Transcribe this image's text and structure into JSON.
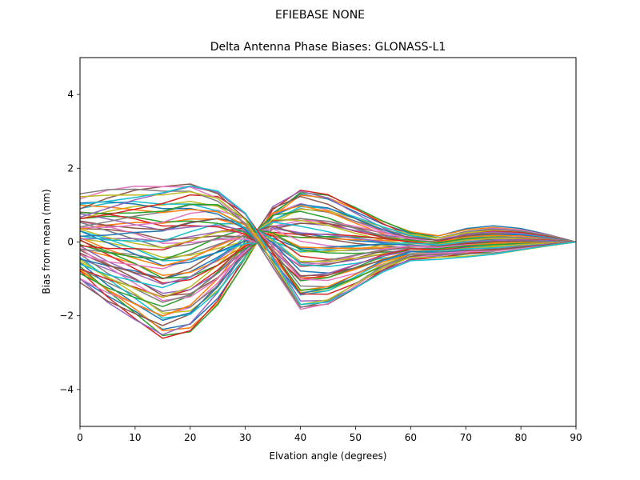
{
  "chart_data": {
    "type": "line",
    "suptitle": "EFIEBASE        NONE",
    "title": "Delta Antenna Phase Biases: GLONASS-L1",
    "xlabel": "Elvation angle (degrees)",
    "ylabel": "Bias from mean (mm)",
    "xlim": [
      0,
      90
    ],
    "ylim": [
      -5,
      5
    ],
    "xticks": [
      0,
      10,
      20,
      30,
      40,
      50,
      60,
      70,
      80,
      90
    ],
    "yticks": [
      -4,
      -2,
      0,
      2,
      4
    ],
    "ytick_labels": [
      "−4",
      "−2",
      "0",
      "2",
      "4"
    ],
    "grid": false,
    "legend": "none",
    "x": [
      0,
      5,
      10,
      15,
      20,
      25,
      30,
      35,
      40,
      45,
      50,
      55,
      60,
      65,
      70,
      75,
      80,
      85,
      90
    ],
    "colors": [
      "#1f77b4",
      "#ff7f0e",
      "#2ca02c",
      "#d62728",
      "#9467bd",
      "#8c564b",
      "#e377c2",
      "#7f7f7f",
      "#bcbd22",
      "#17becf"
    ],
    "series_count": 60,
    "profile_low": [
      -1.0,
      -1.6,
      -2.1,
      -2.6,
      -2.4,
      -1.6,
      -0.4,
      0.9,
      1.45,
      1.3,
      0.9,
      0.5,
      0.2,
      0.1,
      0.3,
      0.4,
      0.35,
      0.2,
      0.0
    ],
    "profile_high": [
      1.1,
      1.3,
      1.45,
      1.55,
      1.65,
      1.4,
      0.7,
      -0.6,
      -1.85,
      -1.75,
      -1.3,
      -0.8,
      -0.45,
      -0.4,
      -0.35,
      -0.3,
      -0.2,
      -0.1,
      0.0
    ]
  }
}
